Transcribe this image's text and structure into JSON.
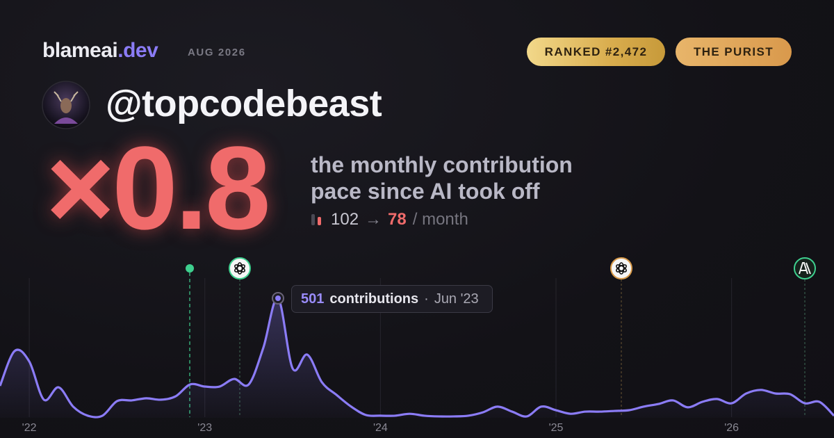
{
  "header": {
    "brand": "blameai",
    "brand_suffix": ".dev",
    "date": "AUG 2026",
    "badges": [
      "RANKED #2,472",
      "THE PURIST"
    ]
  },
  "profile": {
    "handle": "@topcodebeast"
  },
  "summary": {
    "multiplier": "×0.8",
    "description": "the monthly contribution pace since AI took off",
    "before": "102",
    "arrow": "→",
    "after": "78",
    "unit": "/ month"
  },
  "chart_data": {
    "type": "line",
    "categories": [
      null,
      null,
      "'22",
      null,
      null,
      null,
      null,
      null,
      null,
      null,
      null,
      null,
      null,
      null,
      "'23",
      null,
      null,
      null,
      null,
      null,
      null,
      null,
      null,
      null,
      null,
      null,
      "'24",
      null,
      null,
      null,
      null,
      null,
      null,
      null,
      null,
      null,
      null,
      null,
      "'25",
      null,
      null,
      null,
      null,
      null,
      null,
      null,
      null,
      null,
      null,
      null,
      "'26",
      null,
      null,
      null,
      null,
      null,
      null,
      null
    ],
    "series": [
      {
        "name": "contributions",
        "color": "#8b7cf6",
        "values": [
          134,
          280,
          236,
          76,
          128,
          47,
          9,
          9,
          70,
          73,
          82,
          76,
          90,
          140,
          131,
          131,
          163,
          140,
          294,
          501,
          207,
          265,
          149,
          96,
          47,
          12,
          9,
          9,
          17,
          9,
          6,
          6,
          9,
          23,
          47,
          26,
          6,
          47,
          32,
          17,
          26,
          26,
          29,
          32,
          47,
          58,
          73,
          44,
          67,
          79,
          61,
          102,
          117,
          102,
          99,
          61,
          67,
          9
        ]
      }
    ],
    "ylim": [
      0,
      600
    ],
    "tooltip": {
      "label": "contributions",
      "separator": "·",
      "date": "Jun '23"
    }
  }
}
